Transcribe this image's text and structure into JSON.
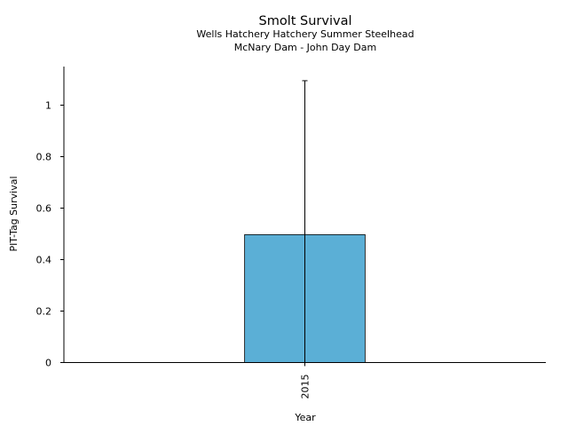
{
  "chart_data": {
    "type": "bar",
    "title": "Smolt Survival",
    "subtitle_lines": [
      "Wells Hatchery Hatchery Summer Steelhead",
      "McNary Dam - John Day Dam"
    ],
    "xlabel": "Year",
    "ylabel": "PIT-Tag Survival",
    "categories": [
      "2015"
    ],
    "series": [
      {
        "values": [
          0.497
        ],
        "error_upper": [
          1.095
        ],
        "error_lower": [
          0.0
        ],
        "color": "#5bafd6"
      }
    ],
    "ylim": [
      0,
      1.15
    ],
    "yticks": [
      0,
      0.2,
      0.4,
      0.6,
      0.8,
      1
    ],
    "ytick_labels": [
      "0",
      "0.2",
      "0.4",
      "0.6",
      "0.8",
      "1"
    ],
    "grid": false,
    "legend": "none"
  }
}
